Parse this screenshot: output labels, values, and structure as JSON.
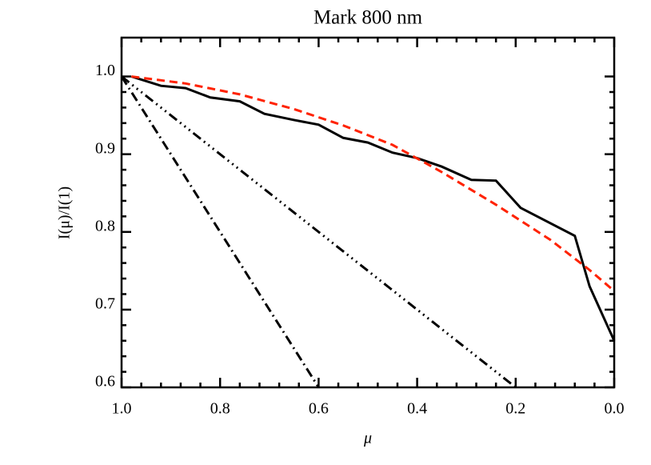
{
  "chart_data": {
    "type": "line",
    "title": "Mark 800 nm",
    "xlabel": "μ",
    "ylabel": "I(μ)/I(1)",
    "xlim": [
      1.0,
      0.0
    ],
    "ylim": [
      0.6,
      1.05
    ],
    "xticks": [
      {
        "value": 1.0,
        "label": "1.0"
      },
      0.8,
      0.6,
      0.4,
      0.2,
      {
        "value": 0.0,
        "label": "0.0"
      }
    ],
    "yticks": [
      0.6,
      0.7,
      0.8,
      0.9,
      {
        "value": 1.0,
        "label": "1.0"
      }
    ],
    "minor_per_major": 5,
    "series": [
      {
        "color": "#000000",
        "dash": "solid",
        "x": [
          0.98,
          0.92,
          0.87,
          0.82,
          0.76,
          0.71,
          0.65,
          0.6,
          0.55,
          0.5,
          0.45,
          0.4,
          0.35,
          0.29,
          0.24,
          0.19,
          0.08,
          0.05,
          0.0
        ],
        "values": [
          1.0,
          0.988,
          0.985,
          0.973,
          0.968,
          0.952,
          0.944,
          0.938,
          0.921,
          0.915,
          0.902,
          0.895,
          0.884,
          0.867,
          0.866,
          0.831,
          0.795,
          0.73,
          0.66
        ]
      },
      {
        "color": "#ff2200",
        "dash": "dashed",
        "x": [
          0.98,
          0.87,
          0.76,
          0.65,
          0.55,
          0.45,
          0.35,
          0.24,
          0.13,
          0.05,
          0.0
        ],
        "values": [
          1.0,
          0.991,
          0.977,
          0.958,
          0.937,
          0.912,
          0.877,
          0.835,
          0.79,
          0.751,
          0.724
        ]
      },
      {
        "color": "#000000",
        "dash": "dash-dot-dot-dot",
        "x": [
          1.0,
          0.2
        ],
        "values": [
          1.0,
          0.6
        ]
      },
      {
        "color": "#000000",
        "dash": "dash-dot",
        "x": [
          1.0,
          0.6
        ],
        "values": [
          1.0,
          0.6
        ]
      }
    ]
  }
}
